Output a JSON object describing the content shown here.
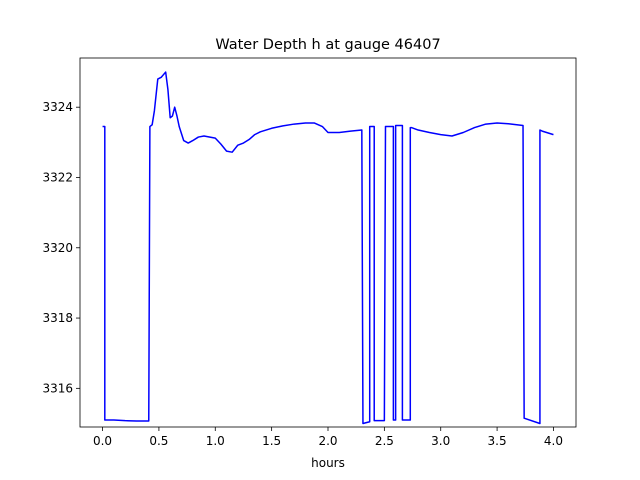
{
  "chart_data": {
    "type": "line",
    "title": "Water Depth h at gauge 46407",
    "xlabel": "hours",
    "ylabel": "",
    "xlim": [
      -0.2,
      4.2
    ],
    "ylim": [
      3314.9,
      3325.4
    ],
    "xticks": [
      0.0,
      0.5,
      1.0,
      1.5,
      2.0,
      2.5,
      3.0,
      3.5,
      4.0
    ],
    "xtick_labels": [
      "0.0",
      "0.5",
      "1.0",
      "1.5",
      "2.0",
      "2.5",
      "3.0",
      "3.5",
      "4.0"
    ],
    "yticks": [
      3316,
      3318,
      3320,
      3322,
      3324
    ],
    "ytick_labels": [
      "3316",
      "3318",
      "3320",
      "3322",
      "3324"
    ],
    "grid": false,
    "series": [
      {
        "color": "#0000ff",
        "x": [
          0.0,
          0.02,
          0.02,
          0.1,
          0.2,
          0.3,
          0.41,
          0.42,
          0.44,
          0.46,
          0.49,
          0.52,
          0.56,
          0.58,
          0.6,
          0.62,
          0.64,
          0.66,
          0.68,
          0.72,
          0.76,
          0.8,
          0.85,
          0.9,
          1.0,
          1.05,
          1.1,
          1.15,
          1.2,
          1.25,
          1.3,
          1.35,
          1.4,
          1.45,
          1.5,
          1.6,
          1.7,
          1.8,
          1.88,
          1.95,
          2.0,
          2.1,
          2.2,
          2.3,
          2.31,
          2.37,
          2.37,
          2.41,
          2.41,
          2.5,
          2.51,
          2.58,
          2.58,
          2.6,
          2.6,
          2.66,
          2.66,
          2.73,
          2.73,
          2.74,
          2.8,
          2.9,
          3.0,
          3.1,
          3.2,
          3.3,
          3.4,
          3.5,
          3.6,
          3.73,
          3.74,
          3.88,
          3.88,
          3.9,
          4.0
        ],
        "y": [
          3323.45,
          3323.45,
          3315.1,
          3315.1,
          3315.08,
          3315.07,
          3315.07,
          3323.45,
          3323.5,
          3323.9,
          3324.8,
          3324.85,
          3325.0,
          3324.5,
          3323.7,
          3323.75,
          3324.0,
          3323.75,
          3323.45,
          3323.05,
          3322.98,
          3323.05,
          3323.15,
          3323.18,
          3323.12,
          3322.95,
          3322.75,
          3322.72,
          3322.92,
          3322.98,
          3323.08,
          3323.22,
          3323.3,
          3323.35,
          3323.4,
          3323.47,
          3323.52,
          3323.55,
          3323.55,
          3323.45,
          3323.28,
          3323.28,
          3323.32,
          3323.35,
          3315.0,
          3315.05,
          3323.45,
          3323.45,
          3315.08,
          3315.08,
          3323.45,
          3323.45,
          3315.1,
          3315.1,
          3323.48,
          3323.48,
          3315.1,
          3315.1,
          3323.42,
          3323.42,
          3323.35,
          3323.28,
          3323.22,
          3323.18,
          3323.28,
          3323.42,
          3323.52,
          3323.55,
          3323.53,
          3323.48,
          3315.15,
          3315.0,
          3323.35,
          3323.32,
          3323.22
        ]
      }
    ]
  }
}
